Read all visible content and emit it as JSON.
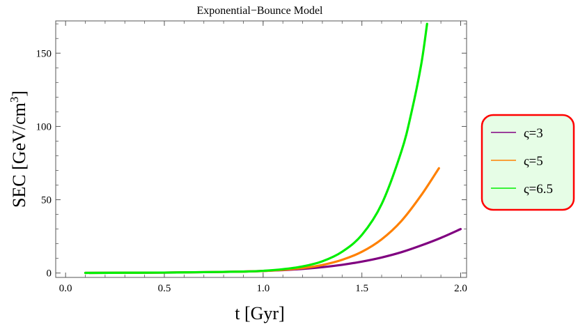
{
  "chart_data": {
    "type": "line",
    "title": "Exponential−Bounce Model",
    "xlabel": "t [Gyr]",
    "ylabel": "SEC [GeV/cm",
    "ylabel_sup": "3",
    "ylabel_end": "]",
    "xlim": [
      -0.05,
      2.03
    ],
    "ylim": [
      -3,
      172
    ],
    "xticks": [
      0.0,
      0.5,
      1.0,
      1.5,
      2.0
    ],
    "xtick_labels": [
      "0.0",
      "0.5",
      "1.0",
      "1.5",
      "2.0"
    ],
    "yticks": [
      0,
      50,
      100,
      150
    ],
    "ytick_labels": [
      "0",
      "50",
      "100",
      "150"
    ],
    "grid": false,
    "legend_position": "right",
    "legend_style": {
      "fill": "#e6fde6",
      "border": "#ff0000"
    },
    "series": [
      {
        "name": "ς=3",
        "color": "#800080",
        "x": [
          0.1,
          0.3,
          0.5,
          0.7,
          0.9,
          1.0,
          1.1,
          1.2,
          1.3,
          1.4,
          1.5,
          1.6,
          1.7,
          1.8,
          1.9,
          2.0
        ],
        "y": [
          0.1,
          0.2,
          0.3,
          0.6,
          1.0,
          1.4,
          2.0,
          2.8,
          4.0,
          5.6,
          7.8,
          10.6,
          14.2,
          18.8,
          24.0,
          30.0
        ]
      },
      {
        "name": "ς=5",
        "color": "#ff8000",
        "x": [
          0.1,
          0.3,
          0.5,
          0.7,
          0.9,
          1.0,
          1.1,
          1.2,
          1.3,
          1.4,
          1.5,
          1.6,
          1.7,
          1.8,
          1.89
        ],
        "y": [
          0.1,
          0.2,
          0.3,
          0.6,
          1.0,
          1.4,
          2.2,
          3.4,
          5.5,
          9.0,
          14.5,
          23.0,
          35.5,
          53.0,
          71.5
        ]
      },
      {
        "name": "ς=6.5",
        "color": "#00ee00",
        "x": [
          0.1,
          0.3,
          0.5,
          0.7,
          0.9,
          1.0,
          1.1,
          1.2,
          1.3,
          1.4,
          1.5,
          1.6,
          1.7,
          1.75,
          1.8,
          1.83
        ],
        "y": [
          0.1,
          0.2,
          0.3,
          0.6,
          1.0,
          1.5,
          2.6,
          4.5,
          8.0,
          14.5,
          26.0,
          47.0,
          83.0,
          109.0,
          142.0,
          170.0
        ]
      }
    ]
  }
}
